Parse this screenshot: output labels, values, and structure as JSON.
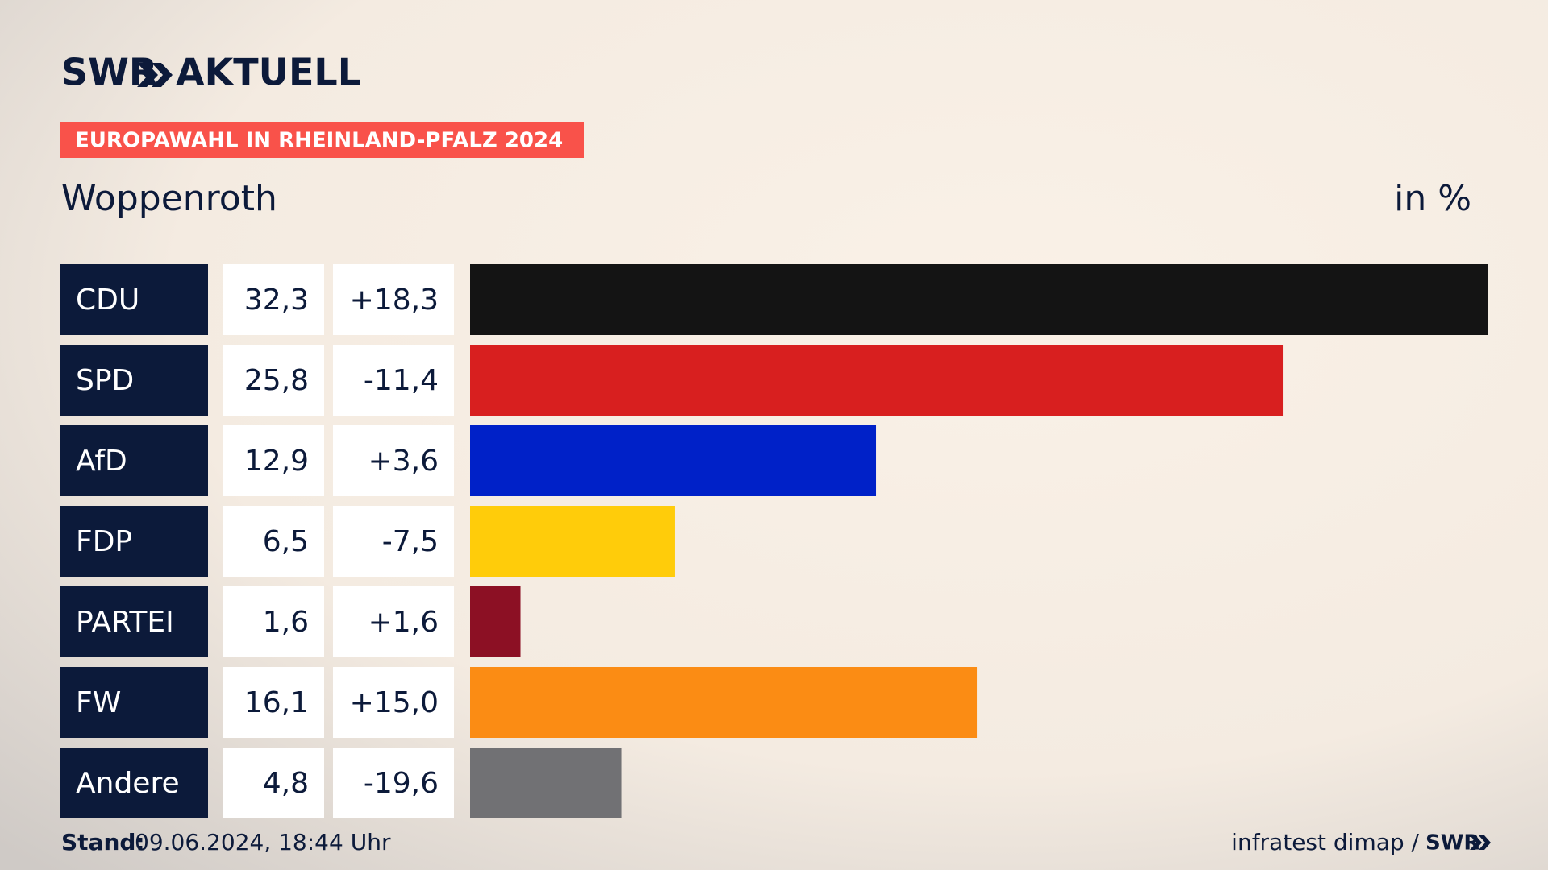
{
  "brand": "SWR",
  "brand_title": "AKTUELL",
  "chart_data": {
    "type": "bar",
    "orientation": "horizontal",
    "subtitle": "EUROPAWAHL IN RHEINLAND-PFALZ 2024",
    "title": "Woppenroth",
    "unit_label": "in %",
    "categories": [
      "CDU",
      "SPD",
      "AfD",
      "FDP",
      "PARTEI",
      "FW",
      "Andere"
    ],
    "values": [
      32.3,
      25.8,
      12.9,
      6.5,
      1.6,
      16.1,
      4.8
    ],
    "value_labels": [
      "32,3",
      "25,8",
      "12,9",
      "6,5",
      "1,6",
      "16,1",
      "4,8"
    ],
    "changes": [
      {
        "value": 18.3,
        "label": "+18,3"
      },
      {
        "value": -11.4,
        "label": "-11,4"
      },
      {
        "value": 3.6,
        "label": "+3,6"
      },
      {
        "value": -7.5,
        "label": "-7,5"
      },
      {
        "value": 1.6,
        "label": "+1,6"
      },
      {
        "value": 15.0,
        "label": "+15,0"
      },
      {
        "value": -19.6,
        "label": "-19,6"
      }
    ],
    "colors": [
      "#141414",
      "#d81f1f",
      "#0021c8",
      "#ffcc0a",
      "#8c1024",
      "#fb8c14",
      "#717174"
    ],
    "xlim": [
      0,
      32.3
    ]
  },
  "footer": {
    "stand_label": "Stand:",
    "stand_value": "09.06.2024, 18:44 Uhr",
    "source": "infratest dimap /",
    "source_brand": "SWR"
  }
}
